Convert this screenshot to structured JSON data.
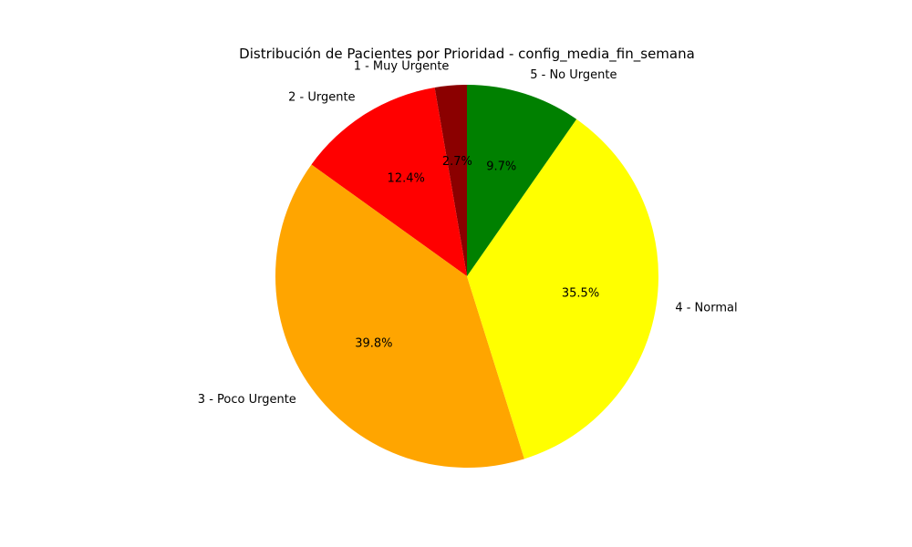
{
  "chart_data": {
    "type": "pie",
    "title": "Distribución de Pacientes por Prioridad - config_media_fin_semana",
    "start_angle_deg": 90,
    "direction": "counterclockwise",
    "slices": [
      {
        "label": "1 - Muy Urgente",
        "value": 2.7,
        "pct_label": "2.7%",
        "color": "#8b0000"
      },
      {
        "label": "2 - Urgente",
        "value": 12.4,
        "pct_label": "12.4%",
        "color": "#ff0000"
      },
      {
        "label": "3 - Poco Urgente",
        "value": 39.8,
        "pct_label": "39.8%",
        "color": "#ffa500"
      },
      {
        "label": "4 - Normal",
        "value": 35.5,
        "pct_label": "35.5%",
        "color": "#ffff00"
      },
      {
        "label": "5 - No Urgente",
        "value": 9.7,
        "pct_label": "9.7%",
        "color": "#008000"
      }
    ]
  }
}
